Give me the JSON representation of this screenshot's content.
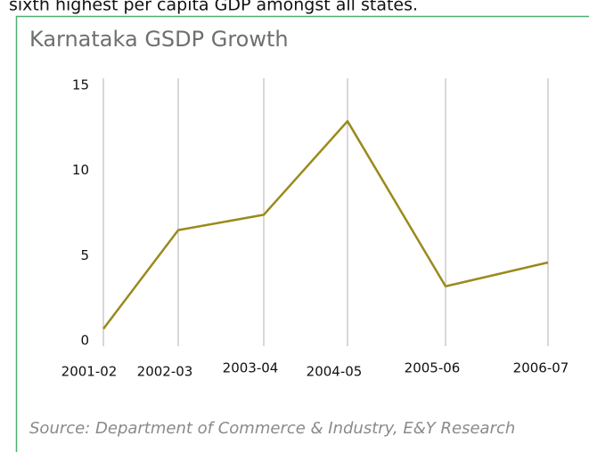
{
  "header_text": "sixth highest per capita GDP amongst all states.",
  "chart_data": {
    "type": "line",
    "title": "Karnataka GSDP Growth",
    "categories": [
      "2001-02",
      "2002-03",
      "2003-04",
      "2004-05",
      "2005-06",
      "2006-07"
    ],
    "values": [
      0.7,
      6.5,
      7.4,
      12.9,
      3.2,
      4.6
    ],
    "color": "#9a8a1c",
    "ylim": [
      0,
      15
    ],
    "yticks": [
      0,
      5,
      10,
      15
    ],
    "grid": false,
    "xgrid": true,
    "source": "Source: Department of Commerce & Industry, E&Y Research"
  }
}
